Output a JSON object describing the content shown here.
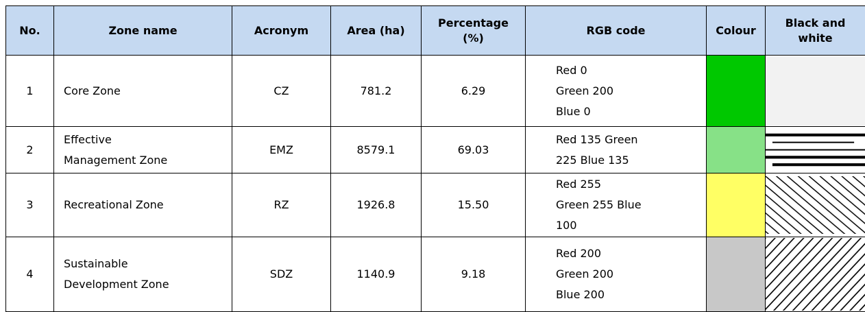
{
  "table": {
    "headers": [
      "No.",
      "Zone name",
      "Acronym",
      "Area (ha)",
      "Percentage\n(%)",
      "RGB code",
      "Colour",
      "Black and\nwhite"
    ],
    "rows": [
      {
        "no": "1",
        "zone": "Core Zone",
        "acronym": "CZ",
        "area": "781.2",
        "percentage": "6.29",
        "rgb": "Red 0\nGreen 200\nBlue 0",
        "color": "#00c800"
      },
      {
        "no": "2",
        "zone": "Effective\nManagement Zone",
        "acronym": "EMZ",
        "area": "8579.1",
        "percentage": "69.03",
        "rgb": "Red 135 Green\n225 Blue 135",
        "color": "#87e187"
      },
      {
        "no": "3",
        "zone": "Recreational Zone",
        "acronym": "RZ",
        "area": "1926.8",
        "percentage": "15.50",
        "rgb": "Red 255\nGreen 255 Blue\n100",
        "color": "#ffff64"
      },
      {
        "no": "4",
        "zone": "Sustainable\nDevelopment Zone",
        "acronym": "SDZ",
        "area": "1140.9",
        "percentage": "9.18",
        "rgb": "Red 200\nGreen 200\nBlue 200",
        "color": "#c8c8c8"
      }
    ]
  }
}
